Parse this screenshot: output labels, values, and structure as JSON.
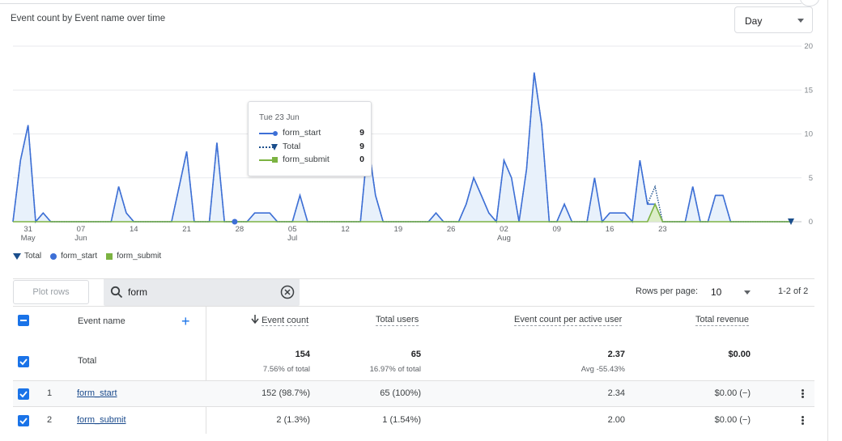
{
  "header": {
    "chart_title": "Event count by Event name over time",
    "granularity": "Day"
  },
  "chart_data": {
    "type": "area",
    "y_ticks": [
      "20",
      "15",
      "10",
      "5",
      "0"
    ],
    "ylim": [
      0,
      20
    ],
    "x_tick_labels": [
      {
        "day": "31",
        "month": "May"
      },
      {
        "day": "07",
        "month": "Jun"
      },
      {
        "day": "14",
        "month": ""
      },
      {
        "day": "21",
        "month": ""
      },
      {
        "day": "28",
        "month": ""
      },
      {
        "day": "05",
        "month": "Jul"
      },
      {
        "day": "12",
        "month": ""
      },
      {
        "day": "19",
        "month": ""
      },
      {
        "day": "26",
        "month": ""
      },
      {
        "day": "02",
        "month": "Aug"
      },
      {
        "day": "09",
        "month": ""
      },
      {
        "day": "16",
        "month": ""
      },
      {
        "day": "23",
        "month": ""
      }
    ],
    "series": [
      {
        "name": "Total",
        "color": "#1a4e8c",
        "values": [
          0,
          7,
          11,
          0,
          1,
          0,
          0,
          0,
          0,
          0,
          0,
          0,
          0,
          0,
          4,
          1,
          0,
          0,
          0,
          0,
          0,
          0,
          4,
          8,
          0,
          0,
          0,
          9,
          0,
          0,
          0,
          0,
          1,
          1,
          1,
          0,
          0,
          0,
          3,
          0,
          0,
          0,
          0,
          0,
          0,
          0,
          0,
          9,
          3,
          0,
          0,
          0,
          0,
          0,
          0,
          0,
          1,
          0,
          0,
          0,
          2,
          5,
          3,
          1,
          0,
          7,
          5,
          0,
          6,
          17,
          11,
          0,
          0,
          2,
          0,
          0,
          0,
          5,
          0,
          1,
          1,
          1,
          0,
          7,
          2,
          4,
          0,
          0,
          0,
          0,
          4,
          0,
          0,
          3,
          3,
          0,
          0,
          0,
          0,
          0,
          0,
          0,
          0,
          0
        ]
      },
      {
        "name": "form_start",
        "color": "#3d6fd6",
        "values": [
          0,
          7,
          11,
          0,
          1,
          0,
          0,
          0,
          0,
          0,
          0,
          0,
          0,
          0,
          4,
          1,
          0,
          0,
          0,
          0,
          0,
          0,
          4,
          8,
          0,
          0,
          0,
          9,
          0,
          0,
          0,
          0,
          1,
          1,
          1,
          0,
          0,
          0,
          3,
          0,
          0,
          0,
          0,
          0,
          0,
          0,
          0,
          9,
          3,
          0,
          0,
          0,
          0,
          0,
          0,
          0,
          1,
          0,
          0,
          0,
          2,
          5,
          3,
          1,
          0,
          7,
          5,
          0,
          6,
          17,
          11,
          0,
          0,
          2,
          0,
          0,
          0,
          5,
          0,
          1,
          1,
          1,
          0,
          7,
          2,
          2,
          0,
          0,
          0,
          0,
          4,
          0,
          0,
          3,
          3,
          0,
          0,
          0,
          0,
          0,
          0,
          0,
          0,
          0
        ]
      },
      {
        "name": "form_submit",
        "color": "#7cb342",
        "values": [
          0,
          0,
          0,
          0,
          0,
          0,
          0,
          0,
          0,
          0,
          0,
          0,
          0,
          0,
          0,
          0,
          0,
          0,
          0,
          0,
          0,
          0,
          0,
          0,
          0,
          0,
          0,
          0,
          0,
          0,
          0,
          0,
          0,
          0,
          0,
          0,
          0,
          0,
          0,
          0,
          0,
          0,
          0,
          0,
          0,
          0,
          0,
          0,
          0,
          0,
          0,
          0,
          0,
          0,
          0,
          0,
          0,
          0,
          0,
          0,
          0,
          0,
          0,
          0,
          0,
          0,
          0,
          0,
          0,
          0,
          0,
          0,
          0,
          0,
          0,
          0,
          0,
          0,
          0,
          0,
          0,
          0,
          0,
          0,
          0,
          2,
          0,
          0,
          0,
          0,
          0,
          0,
          0,
          0,
          0,
          0,
          0,
          0,
          0,
          0,
          0,
          0,
          0,
          0
        ]
      }
    ]
  },
  "tooltip": {
    "date": "Tue 23 Jun",
    "rows": [
      {
        "label": "form_start",
        "value": "9"
      },
      {
        "label": "Total",
        "value": "9"
      },
      {
        "label": "form_submit",
        "value": "0"
      }
    ]
  },
  "legend": {
    "items": [
      "Total",
      "form_start",
      "form_submit"
    ]
  },
  "controls": {
    "plot_rows_label": "Plot rows",
    "search_value": "form",
    "rows_per_page_label": "Rows per page:",
    "rows_per_page_value": "10",
    "page_range": "1-2 of 2"
  },
  "table": {
    "columns": {
      "event_name": "Event name",
      "event_count": "Event count",
      "total_users": "Total users",
      "per_user": "Event count per active user",
      "revenue": "Total revenue"
    },
    "total": {
      "label": "Total",
      "event_count": "154",
      "event_count_sub": "7.56% of total",
      "total_users": "65",
      "total_users_sub": "16.97% of total",
      "per_user": "2.37",
      "per_user_sub": "Avg -55.43%",
      "revenue": "$0.00"
    },
    "rows": [
      {
        "index": "1",
        "name": "form_start",
        "event_count": "152 (98.7%)",
        "total_users": "65 (100%)",
        "per_user": "2.34",
        "revenue": "$0.00 (−)"
      },
      {
        "index": "2",
        "name": "form_submit",
        "event_count": "2 (1.3%)",
        "total_users": "1 (1.54%)",
        "per_user": "2.00",
        "revenue": "$0.00 (−)"
      }
    ]
  }
}
